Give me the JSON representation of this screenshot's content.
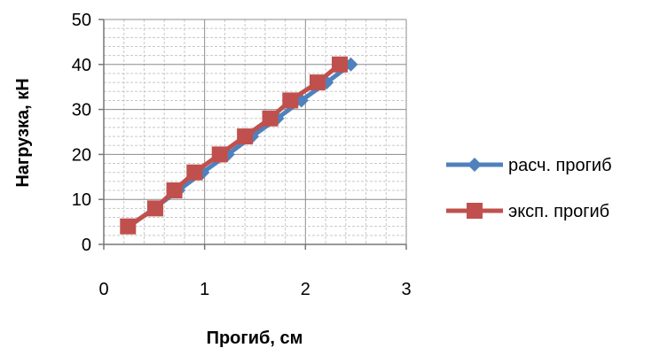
{
  "chart_data": {
    "type": "line",
    "xlabel": "Прогиб, см",
    "ylabel": "Нагрузка, кН",
    "xlim": [
      0,
      3
    ],
    "ylim": [
      0,
      50
    ],
    "x_ticks": [
      "0",
      "1",
      "2",
      "3"
    ],
    "y_ticks": [
      "0",
      "10",
      "20",
      "30",
      "40",
      "50"
    ],
    "grid": true,
    "legend_position": "right",
    "series": [
      {
        "name": "расч. прогиб",
        "color": "#4F81BD",
        "marker": "diamond",
        "x": [
          0.25,
          0.5,
          0.74,
          0.98,
          1.23,
          1.47,
          1.72,
          1.96,
          2.21,
          2.45
        ],
        "y": [
          4,
          8,
          12,
          16,
          20,
          24,
          28,
          32,
          36,
          40
        ]
      },
      {
        "name": "эксп. прогиб",
        "color": "#C0504D",
        "marker": "square",
        "x": [
          0.24,
          0.51,
          0.7,
          0.9,
          1.15,
          1.4,
          1.65,
          1.85,
          2.12,
          2.34
        ],
        "y": [
          4,
          8,
          12,
          16,
          20,
          24,
          28,
          32,
          36,
          40
        ]
      }
    ]
  }
}
